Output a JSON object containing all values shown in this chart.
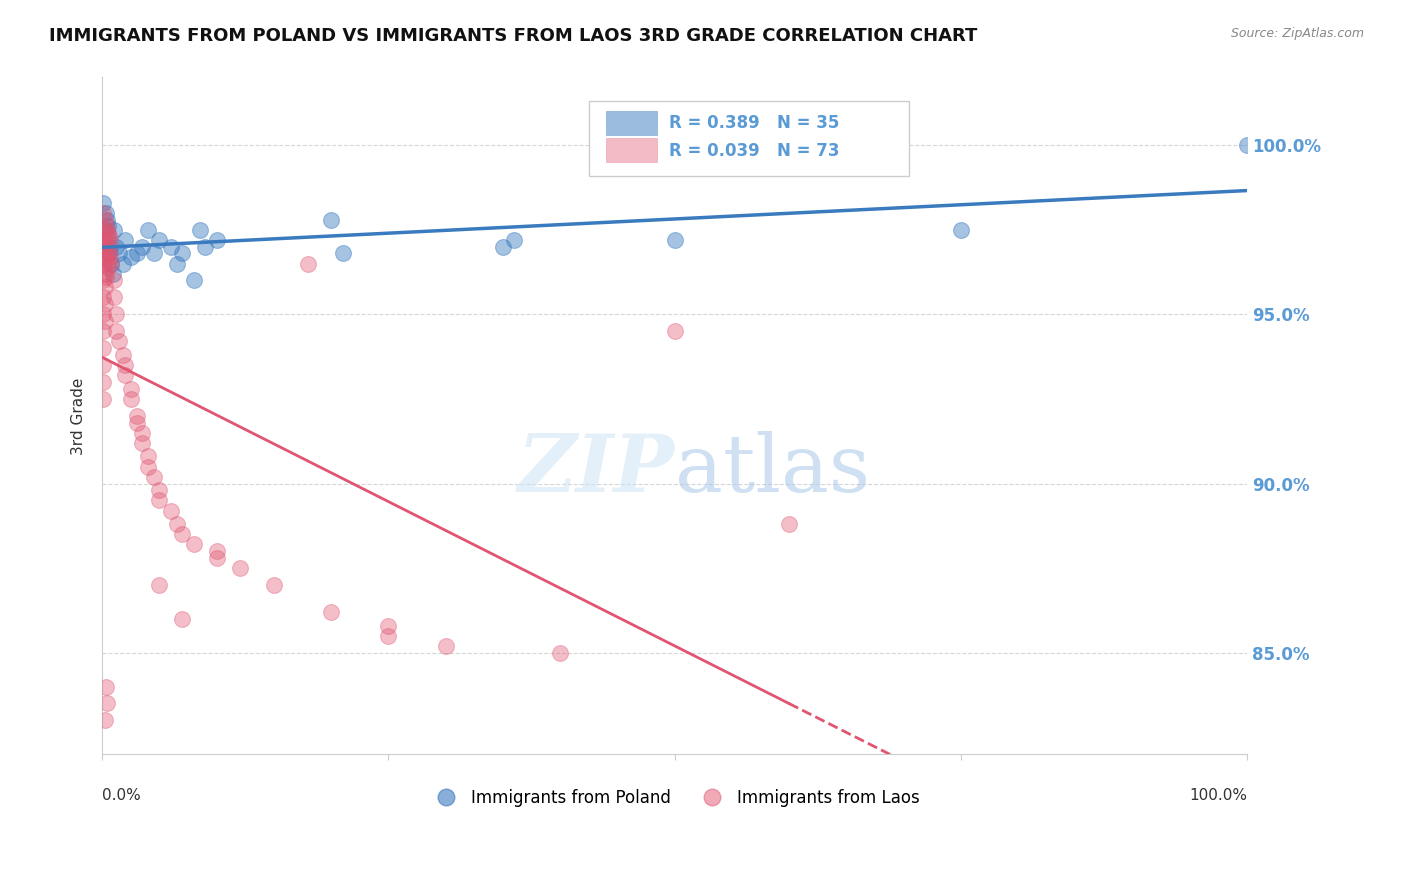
{
  "title": "IMMIGRANTS FROM POLAND VS IMMIGRANTS FROM LAOS 3RD GRADE CORRELATION CHART",
  "source": "Source: ZipAtlas.com",
  "ylabel": "3rd Grade",
  "yticks": [
    0.85,
    0.9,
    0.95,
    1.0
  ],
  "ytick_labels": [
    "85.0%",
    "90.0%",
    "95.0%",
    "100.0%"
  ],
  "xlim": [
    0.0,
    1.0
  ],
  "ylim": [
    0.82,
    1.02
  ],
  "poland_line_color": "#3a7abf",
  "laos_line_color": "#e05570",
  "background_color": "#ffffff",
  "grid_color": "#cccccc",
  "tick_label_color": "#5b9bd5",
  "title_fontsize": 13,
  "axis_label_fontsize": 11,
  "poland_x": [
    0.001,
    0.002,
    0.003,
    0.004,
    0.005,
    0.005,
    0.006,
    0.007,
    0.008,
    0.009,
    0.01,
    0.012,
    0.015,
    0.018,
    0.02,
    0.025,
    0.03,
    0.035,
    0.04,
    0.045,
    0.05,
    0.06,
    0.065,
    0.07,
    0.085,
    0.09,
    0.1,
    0.2,
    0.21,
    0.35,
    0.36,
    0.5,
    0.75,
    1.0,
    0.08
  ],
  "poland_y": [
    0.983,
    0.975,
    0.98,
    0.978,
    0.976,
    0.972,
    0.968,
    0.97,
    0.965,
    0.962,
    0.975,
    0.97,
    0.968,
    0.965,
    0.972,
    0.967,
    0.968,
    0.97,
    0.975,
    0.968,
    0.972,
    0.97,
    0.965,
    0.968,
    0.975,
    0.97,
    0.972,
    0.978,
    0.968,
    0.97,
    0.972,
    0.972,
    0.975,
    1.0,
    0.96
  ],
  "laos_x": [
    0.001,
    0.001,
    0.001,
    0.001,
    0.001,
    0.001,
    0.001,
    0.001,
    0.001,
    0.001,
    0.001,
    0.001,
    0.002,
    0.002,
    0.002,
    0.002,
    0.002,
    0.002,
    0.002,
    0.003,
    0.003,
    0.003,
    0.003,
    0.004,
    0.004,
    0.004,
    0.005,
    0.005,
    0.005,
    0.006,
    0.006,
    0.007,
    0.007,
    0.008,
    0.01,
    0.01,
    0.012,
    0.012,
    0.015,
    0.018,
    0.02,
    0.02,
    0.025,
    0.025,
    0.03,
    0.03,
    0.035,
    0.035,
    0.04,
    0.04,
    0.045,
    0.05,
    0.05,
    0.06,
    0.065,
    0.07,
    0.08,
    0.1,
    0.12,
    0.15,
    0.18,
    0.2,
    0.25,
    0.25,
    0.3,
    0.4,
    0.5,
    0.6,
    0.1,
    0.05,
    0.07,
    0.003,
    0.004,
    0.002
  ],
  "laos_y": [
    0.98,
    0.975,
    0.97,
    0.965,
    0.96,
    0.955,
    0.95,
    0.945,
    0.94,
    0.935,
    0.93,
    0.925,
    0.978,
    0.972,
    0.967,
    0.962,
    0.958,
    0.953,
    0.948,
    0.976,
    0.971,
    0.966,
    0.961,
    0.975,
    0.97,
    0.965,
    0.974,
    0.969,
    0.964,
    0.973,
    0.968,
    0.972,
    0.967,
    0.965,
    0.96,
    0.955,
    0.95,
    0.945,
    0.942,
    0.938,
    0.935,
    0.932,
    0.928,
    0.925,
    0.92,
    0.918,
    0.915,
    0.912,
    0.908,
    0.905,
    0.902,
    0.898,
    0.895,
    0.892,
    0.888,
    0.885,
    0.882,
    0.878,
    0.875,
    0.87,
    0.965,
    0.862,
    0.858,
    0.855,
    0.852,
    0.85,
    0.945,
    0.888,
    0.88,
    0.87,
    0.86,
    0.84,
    0.835,
    0.83
  ]
}
